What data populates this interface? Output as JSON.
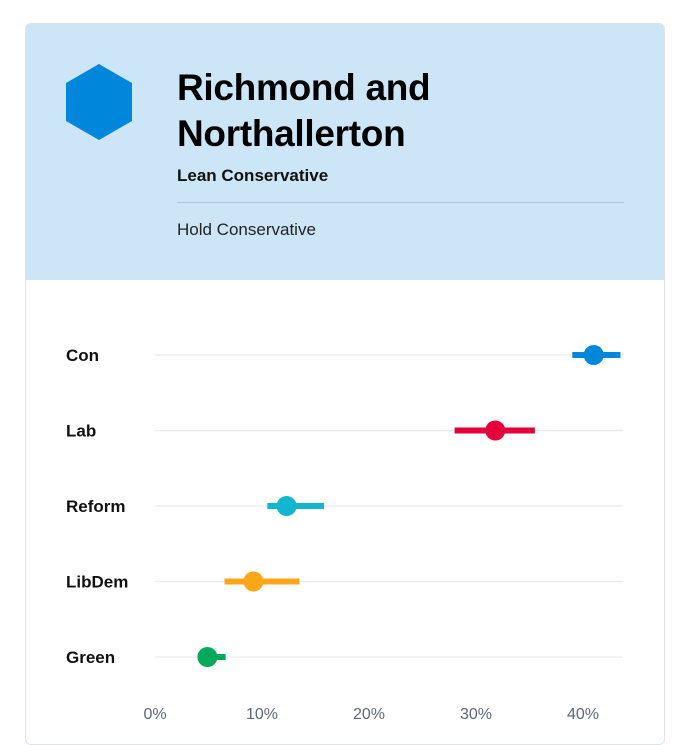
{
  "seat": {
    "name": "Richmond and Northallerton",
    "lean": "Lean Conservative",
    "prediction": "Hold Conservative",
    "logo_icon": "hexagon-icon",
    "logo_color": "#0087dc"
  },
  "chart_data": {
    "type": "dot-range",
    "title": "",
    "xlabel": "",
    "ylabel": "",
    "xlim": [
      0,
      44
    ],
    "x_ticks": [
      "0%",
      "10%",
      "20%",
      "30%",
      "40%"
    ],
    "x_tick_values": [
      0,
      10,
      20,
      30,
      40
    ],
    "grid": true,
    "series": [
      {
        "name": "Con",
        "value": 41,
        "low": 39,
        "high": 43.5,
        "color": "#0087dc"
      },
      {
        "name": "Lab",
        "value": 31.8,
        "low": 28,
        "high": 35.5,
        "color": "#e4003b"
      },
      {
        "name": "Reform",
        "value": 12.3,
        "low": 10.5,
        "high": 15.8,
        "color": "#12b6cf"
      },
      {
        "name": "LibDem",
        "value": 9.2,
        "low": 6.5,
        "high": 13.5,
        "color": "#faa61a"
      },
      {
        "name": "Green",
        "value": 4.9,
        "low": 4.0,
        "high": 6.6,
        "color": "#02a95b"
      }
    ]
  }
}
